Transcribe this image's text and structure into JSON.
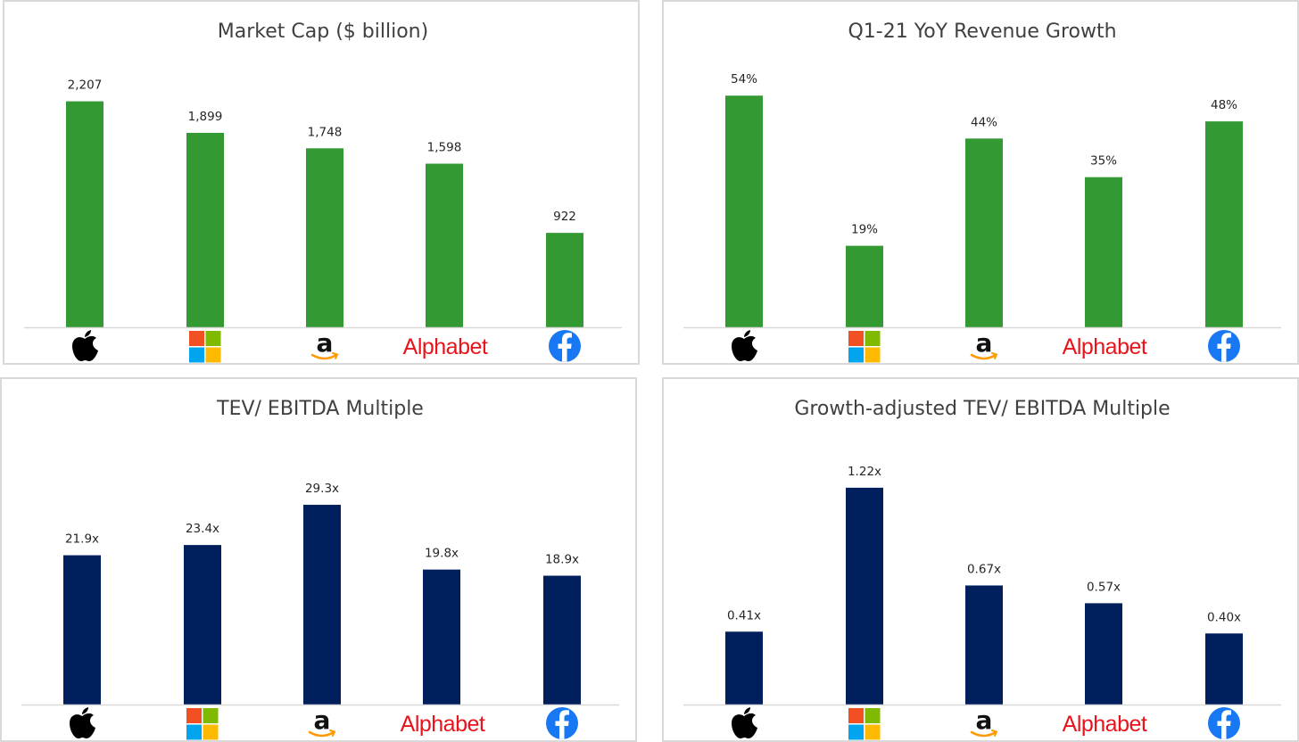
{
  "companies": [
    {
      "key": "apple",
      "icon": "apple-icon",
      "label": ""
    },
    {
      "key": "microsoft",
      "icon": "microsoft-icon",
      "label": ""
    },
    {
      "key": "amazon",
      "icon": "amazon-icon",
      "label": ""
    },
    {
      "key": "alphabet",
      "icon": "alphabet-logo",
      "label": "Alphabet"
    },
    {
      "key": "facebook",
      "icon": "facebook-icon",
      "label": ""
    }
  ],
  "colors": {
    "green": "#339933",
    "navy": "#001f5c",
    "axis": "#d9d9d9",
    "alphabet_red": "#e8131b"
  },
  "chart_data": [
    {
      "type": "bar",
      "title": "Market Cap ($ billion)",
      "categories": [
        "Apple",
        "Microsoft",
        "Amazon",
        "Alphabet",
        "Facebook"
      ],
      "values": [
        2207,
        1899,
        1748,
        1598,
        922
      ],
      "data_labels": [
        "2,207",
        "1,899",
        "1,748",
        "1,598",
        "922"
      ],
      "ylim": [
        0,
        2430
      ],
      "color": "#339933",
      "xlabel": "",
      "ylabel": "",
      "grid": false
    },
    {
      "type": "bar",
      "title": "Q1-21 YoY Revenue Growth",
      "categories": [
        "Apple",
        "Microsoft",
        "Amazon",
        "Alphabet",
        "Facebook"
      ],
      "values": [
        54,
        19,
        44,
        35,
        48
      ],
      "data_labels": [
        "54%",
        "19%",
        "44%",
        "35%",
        "48%"
      ],
      "ylim": [
        0,
        58
      ],
      "color": "#339933",
      "xlabel": "",
      "ylabel": "",
      "grid": false
    },
    {
      "type": "bar",
      "title": "TEV/ EBITDA Multiple",
      "categories": [
        "Apple",
        "Microsoft",
        "Amazon",
        "Alphabet",
        "Facebook"
      ],
      "values": [
        21.9,
        23.4,
        29.3,
        19.8,
        18.9
      ],
      "data_labels": [
        "21.9x",
        "23.4x",
        "29.3x",
        "19.8x",
        "18.9x"
      ],
      "ylim": [
        0,
        36.5
      ],
      "color": "#001f5c",
      "xlabel": "",
      "ylabel": "",
      "grid": false
    },
    {
      "type": "bar",
      "title": "Growth-adjusted TEV/ EBITDA Multiple",
      "categories": [
        "Apple",
        "Microsoft",
        "Amazon",
        "Alphabet",
        "Facebook"
      ],
      "values": [
        0.41,
        1.22,
        0.67,
        0.57,
        0.4
      ],
      "data_labels": [
        "0.41x",
        "1.22x",
        "0.67x",
        "0.57x",
        "0.40x"
      ],
      "ylim": [
        0,
        1.4
      ],
      "color": "#001f5c",
      "xlabel": "",
      "ylabel": "",
      "grid": false
    }
  ]
}
